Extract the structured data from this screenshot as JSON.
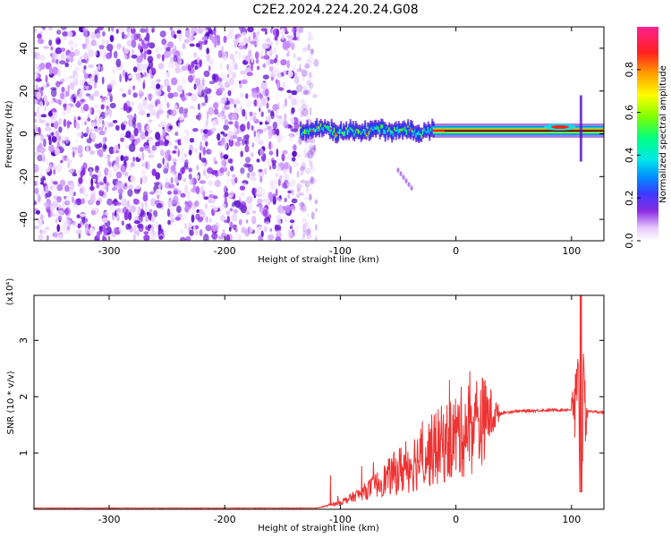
{
  "title": "C2E2.2024.224.20.24.G08",
  "chart_data": [
    {
      "type": "heatmap",
      "xlabel": "Height of straight line (km)",
      "ylabel": "Frequency (Hz)",
      "xlim": [
        -365,
        128
      ],
      "ylim": [
        -50,
        50
      ],
      "x_ticks": [
        -300,
        -200,
        -100,
        0,
        100
      ],
      "y_ticks": [
        -40,
        -20,
        0,
        20,
        40
      ],
      "colorbar": {
        "label": "Normalized spectral amplitude",
        "range": [
          0,
          1
        ],
        "ticks": [
          0.0,
          0.2,
          0.4,
          0.6,
          0.8
        ]
      },
      "features": {
        "noise_region_x": [
          -365,
          -130
        ],
        "signal_band_freq_hz": 1.5,
        "signal_start_x": -135
      }
    },
    {
      "type": "line",
      "xlabel": "Height of straight line (km)",
      "ylabel": "SNR (10 * v/v)",
      "y_multiplier": "(x10⁴)",
      "xlim": [
        -365,
        128
      ],
      "ylim": [
        0,
        3.8
      ],
      "x_ticks": [
        -300,
        -200,
        -100,
        0,
        100
      ],
      "y_ticks": [
        1,
        2,
        3
      ],
      "series": [
        {
          "color": "#ee3333",
          "envelope": [
            {
              "x": -365,
              "y": 0.02
            },
            {
              "x": -120,
              "y": 0.02
            },
            {
              "x": -100,
              "y": 0.12
            },
            {
              "x": -80,
              "y": 0.3
            },
            {
              "x": -60,
              "y": 0.55
            },
            {
              "x": -40,
              "y": 0.8
            },
            {
              "x": -20,
              "y": 1.05
            },
            {
              "x": 0,
              "y": 1.3
            },
            {
              "x": 15,
              "y": 1.5
            },
            {
              "x": 30,
              "y": 1.68
            },
            {
              "x": 50,
              "y": 1.74
            },
            {
              "x": 80,
              "y": 1.76
            },
            {
              "x": 100,
              "y": 1.77
            },
            {
              "x": 128,
              "y": 1.72
            }
          ]
        }
      ]
    }
  ]
}
